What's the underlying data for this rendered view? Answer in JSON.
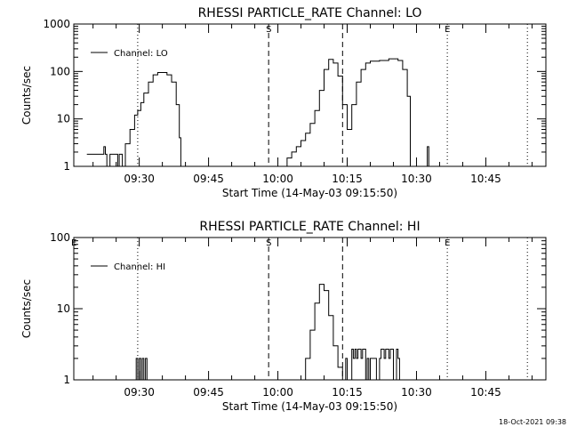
{
  "footer": {
    "timestamp": "18-Oct-2021 09:38"
  },
  "chart_data": [
    {
      "type": "line",
      "title": "RHESSI PARTICLE_RATE Channel: LO",
      "xlabel": "Start Time (14-May-03 09:15:50)",
      "ylabel": "Counts/sec",
      "y_scale": "log",
      "ylim": [
        1,
        1000
      ],
      "xlim": [
        "09:15:50",
        "10:58:00"
      ],
      "x_ticks": [
        "09:30",
        "09:45",
        "10:00",
        "10:15",
        "10:30",
        "10:45"
      ],
      "y_ticks": [
        "1",
        "10",
        "100",
        "1000"
      ],
      "legend": {
        "position": "top-left",
        "entries": [
          "Channel: LO"
        ]
      },
      "markers": [
        {
          "time": "09:29:40",
          "style": "dotted",
          "label": ""
        },
        {
          "time": "09:58:00",
          "style": "dashed",
          "label": "S"
        },
        {
          "time": "10:14:00",
          "style": "dashed",
          "label": ""
        },
        {
          "time": "10:36:40",
          "style": "dotted",
          "label": "E"
        },
        {
          "time": "10:54:00",
          "style": "dotted",
          "label": ""
        }
      ],
      "series": [
        {
          "name": "Channel: LO",
          "points": [
            [
              "09:18:40",
              1.8
            ],
            [
              "09:22:00",
              1.8
            ],
            [
              "09:22:20",
              2.6
            ],
            [
              "09:22:40",
              1.8
            ],
            [
              "09:23:00",
              1.0
            ],
            [
              "09:23:40",
              1.8
            ],
            [
              "09:25:00",
              1.8
            ],
            [
              "09:25:20",
              1.0
            ],
            [
              "09:25:40",
              1.8
            ],
            [
              "09:26:20",
              1.0
            ],
            [
              "09:27:00",
              3.0
            ],
            [
              "09:28:00",
              6.0
            ],
            [
              "09:29:00",
              12.0
            ],
            [
              "09:29:40",
              15.0
            ],
            [
              "09:30:20",
              22.0
            ],
            [
              "09:31:00",
              35.0
            ],
            [
              "09:32:00",
              60.0
            ],
            [
              "09:33:00",
              85.0
            ],
            [
              "09:34:00",
              95.0
            ],
            [
              "09:35:00",
              95.0
            ],
            [
              "09:36:00",
              85.0
            ],
            [
              "09:37:00",
              60.0
            ],
            [
              "09:38:00",
              20.0
            ],
            [
              "09:38:40",
              4.0
            ],
            [
              "09:39:00",
              1.0
            ],
            [
              "10:01:00",
              1.0
            ],
            [
              "10:02:00",
              1.5
            ],
            [
              "10:03:00",
              2.0
            ],
            [
              "10:04:00",
              2.6
            ],
            [
              "10:05:00",
              3.5
            ],
            [
              "10:06:00",
              5.0
            ],
            [
              "10:07:00",
              8.0
            ],
            [
              "10:08:00",
              15.0
            ],
            [
              "10:09:00",
              40.0
            ],
            [
              "10:10:00",
              110.0
            ],
            [
              "10:11:00",
              180.0
            ],
            [
              "10:12:00",
              150.0
            ],
            [
              "10:13:00",
              80.0
            ],
            [
              "10:14:00",
              20.0
            ],
            [
              "10:15:00",
              6.0
            ],
            [
              "10:16:00",
              20.0
            ],
            [
              "10:17:00",
              60.0
            ],
            [
              "10:18:00",
              110.0
            ],
            [
              "10:19:00",
              150.0
            ],
            [
              "10:20:00",
              165.0
            ],
            [
              "10:22:00",
              170.0
            ],
            [
              "10:24:00",
              185.0
            ],
            [
              "10:26:00",
              170.0
            ],
            [
              "10:27:00",
              110.0
            ],
            [
              "10:28:00",
              30.0
            ],
            [
              "10:28:40",
              1.0
            ],
            [
              "10:31:40",
              1.0
            ],
            [
              "10:32:20",
              2.6
            ],
            [
              "10:32:40",
              1.0
            ]
          ]
        }
      ]
    },
    {
      "type": "line",
      "title": "RHESSI PARTICLE_RATE Channel: HI",
      "xlabel": "Start Time (14-May-03 09:15:50)",
      "ylabel": "Counts/sec",
      "y_scale": "log",
      "ylim": [
        1,
        100
      ],
      "xlim": [
        "09:15:50",
        "10:58:00"
      ],
      "x_ticks": [
        "09:30",
        "09:45",
        "10:00",
        "10:15",
        "10:30",
        "10:45"
      ],
      "y_ticks": [
        "1",
        "10",
        "100"
      ],
      "legend": {
        "position": "top-left",
        "entries": [
          "Channel: HI"
        ]
      },
      "markers": [
        {
          "time": "09:15:50",
          "style": "none",
          "label": "E"
        },
        {
          "time": "09:29:40",
          "style": "dotted",
          "label": ""
        },
        {
          "time": "09:58:00",
          "style": "dashed",
          "label": "S"
        },
        {
          "time": "10:14:00",
          "style": "dashed",
          "label": ""
        },
        {
          "time": "10:36:40",
          "style": "dotted",
          "label": "E"
        },
        {
          "time": "10:54:00",
          "style": "dotted",
          "label": ""
        }
      ],
      "series": [
        {
          "name": "Channel: HI",
          "points": [
            [
              "09:29:00",
              1.0
            ],
            [
              "09:29:20",
              2.0
            ],
            [
              "09:29:40",
              1.0
            ],
            [
              "09:30:00",
              2.0
            ],
            [
              "09:30:20",
              1.0
            ],
            [
              "09:30:40",
              2.0
            ],
            [
              "09:31:00",
              1.0
            ],
            [
              "09:31:20",
              2.0
            ],
            [
              "09:31:40",
              1.0
            ],
            [
              "10:05:00",
              1.0
            ],
            [
              "10:06:00",
              2.0
            ],
            [
              "10:07:00",
              5.0
            ],
            [
              "10:08:00",
              12.0
            ],
            [
              "10:09:00",
              22.0
            ],
            [
              "10:10:00",
              18.0
            ],
            [
              "10:11:00",
              8.0
            ],
            [
              "10:12:00",
              3.0
            ],
            [
              "10:13:00",
              1.5
            ],
            [
              "10:14:00",
              1.0
            ],
            [
              "10:14:40",
              2.0
            ],
            [
              "10:15:00",
              1.0
            ],
            [
              "10:16:00",
              2.7
            ],
            [
              "10:16:20",
              2.0
            ],
            [
              "10:16:40",
              2.7
            ],
            [
              "10:17:00",
              2.0
            ],
            [
              "10:17:20",
              2.7
            ],
            [
              "10:18:00",
              2.0
            ],
            [
              "10:18:20",
              2.7
            ],
            [
              "10:19:00",
              1.0
            ],
            [
              "10:19:20",
              2.0
            ],
            [
              "10:19:40",
              1.0
            ],
            [
              "10:20:00",
              2.0
            ],
            [
              "10:21:00",
              2.0
            ],
            [
              "10:21:20",
              1.0
            ],
            [
              "10:22:00",
              2.0
            ],
            [
              "10:22:20",
              2.7
            ],
            [
              "10:23:00",
              2.0
            ],
            [
              "10:23:20",
              2.7
            ],
            [
              "10:24:00",
              2.0
            ],
            [
              "10:24:20",
              2.7
            ],
            [
              "10:25:00",
              1.0
            ],
            [
              "10:25:40",
              2.7
            ],
            [
              "10:26:00",
              2.0
            ],
            [
              "10:26:20",
              1.0
            ]
          ]
        }
      ]
    }
  ]
}
